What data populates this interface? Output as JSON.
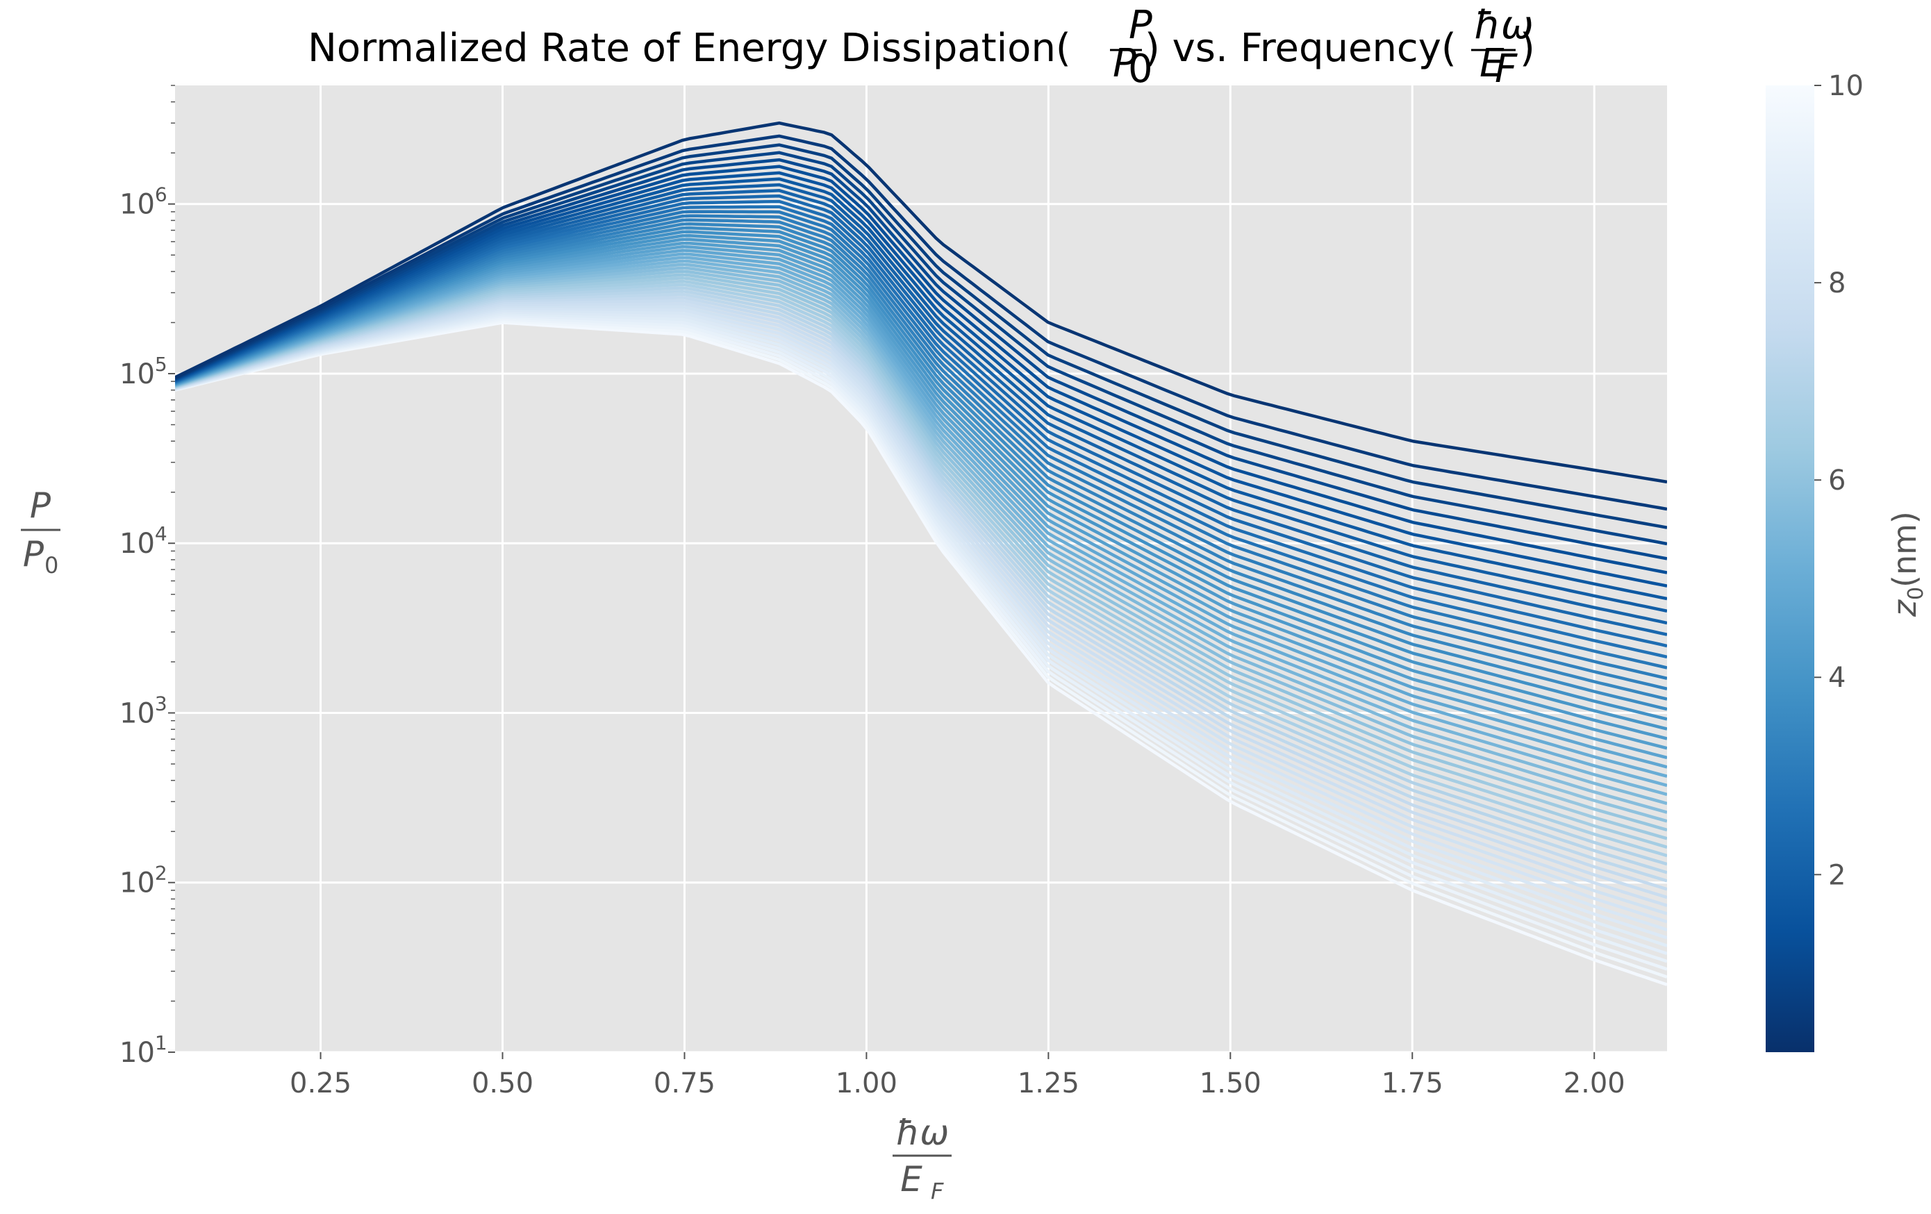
{
  "title": {
    "prefix": "Normalized Rate of Energy Dissipation(",
    "frac1_num": "P",
    "frac1_den": "P",
    "frac1_den_sub": "0",
    "middle": ") vs. Frequency(",
    "frac2_num": "ħω",
    "frac2_den": "E",
    "frac2_den_sub": "F",
    "suffix": ")"
  },
  "xlabel": {
    "num": "ħω",
    "den": "E",
    "den_sub": "F"
  },
  "ylabel": {
    "num": "P",
    "den": "P",
    "den_sub": "0"
  },
  "colorbar": {
    "label_main": "z",
    "label_sub": "0",
    "label_unit": "(nm)",
    "tick_labels": [
      "2",
      "4",
      "6",
      "8",
      "10"
    ],
    "colormap": "Blues_r",
    "colors": [
      "#08306b",
      "#08519c",
      "#2171b5",
      "#4292c6",
      "#6baed6",
      "#9ecae1",
      "#c6dbef",
      "#deebf7",
      "#f7fbff"
    ]
  },
  "chart_data": {
    "type": "line",
    "xscale": "linear",
    "yscale": "log",
    "xlim": [
      0.05,
      2.1
    ],
    "ylim": [
      10,
      5000000
    ],
    "grid": true,
    "x_tick_labels": [
      "0.25",
      "0.50",
      "0.75",
      "1.00",
      "1.25",
      "1.50",
      "1.75",
      "2.00"
    ],
    "y_tick_labels": [
      {
        "base": "10",
        "exp": "1"
      },
      {
        "base": "10",
        "exp": "2"
      },
      {
        "base": "10",
        "exp": "3"
      },
      {
        "base": "10",
        "exp": "4"
      },
      {
        "base": "10",
        "exp": "5"
      },
      {
        "base": "10",
        "exp": "6"
      }
    ],
    "series_count": 50,
    "z0_range_nm": [
      0.2,
      10
    ],
    "color_by": "z0",
    "envelope": {
      "x": [
        0.05,
        0.25,
        0.5,
        0.75,
        0.88,
        0.95,
        1.0,
        1.1,
        1.25,
        1.5,
        1.75,
        2.0,
        2.1
      ],
      "top_z0_min": [
        95000,
        250000,
        950000,
        2400000,
        3000000,
        2600000,
        1700000,
        600000,
        200000,
        75000,
        40000,
        27000,
        23000
      ],
      "bottom_z0_max": [
        80000,
        130000,
        200000,
        170000,
        115000,
        80000,
        48000,
        9500,
        1500,
        300,
        90,
        35,
        25
      ]
    }
  }
}
